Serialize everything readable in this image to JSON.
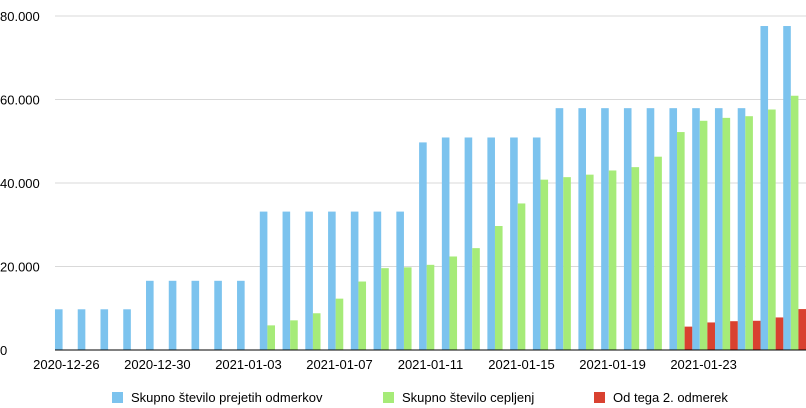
{
  "chart_data": {
    "type": "bar",
    "categories": [
      "2020-12-26",
      "2020-12-27",
      "2020-12-28",
      "2020-12-29",
      "2020-12-30",
      "2020-12-31",
      "2021-01-01",
      "2021-01-02",
      "2021-01-03",
      "2021-01-04",
      "2021-01-05",
      "2021-01-06",
      "2021-01-07",
      "2021-01-08",
      "2021-01-09",
      "2021-01-10",
      "2021-01-11",
      "2021-01-12",
      "2021-01-13",
      "2021-01-14",
      "2021-01-15",
      "2021-01-16",
      "2021-01-17",
      "2021-01-18",
      "2021-01-19",
      "2021-01-20",
      "2021-01-21",
      "2021-01-22",
      "2021-01-23",
      "2021-01-24",
      "2021-01-25",
      "2021-01-26",
      "2021-01-27"
    ],
    "x_tick_labels": [
      "2020-12-26",
      "2020-12-30",
      "2021-01-03",
      "2021-01-07",
      "2021-01-11",
      "2021-01-15",
      "2021-01-19",
      "2021-01-23"
    ],
    "x_tick_indices": [
      0,
      4,
      8,
      12,
      16,
      20,
      24,
      28
    ],
    "y_ticks": [
      0,
      20000,
      40000,
      60000,
      80000
    ],
    "y_tick_labels": [
      "0",
      "20.000",
      "40.000",
      "60.000",
      "80.000"
    ],
    "ylim": [
      0,
      80000
    ],
    "grid": true,
    "legend_position": "bottom",
    "series": [
      {
        "name": "Skupno število prejetih odmerkov",
        "color": "#7cc3ee",
        "values": [
          9750,
          9750,
          9750,
          9750,
          16575,
          16575,
          16575,
          16575,
          16575,
          33150,
          33150,
          33150,
          33150,
          33150,
          33150,
          33150,
          49725,
          50900,
          50900,
          50900,
          50900,
          50900,
          57925,
          57925,
          57925,
          57925,
          57925,
          57925,
          57925,
          57925,
          57925,
          77600,
          77600
        ]
      },
      {
        "name": "Skupno število cepljenj",
        "color": "#a6eb78",
        "values": [
          0,
          0,
          0,
          0,
          0,
          0,
          0,
          0,
          0,
          5900,
          7100,
          8800,
          12300,
          16400,
          19600,
          19800,
          20400,
          22400,
          24400,
          29700,
          35100,
          40800,
          41400,
          42000,
          43000,
          43800,
          46300,
          52200,
          54900,
          55600,
          56000,
          57600,
          60900
        ]
      },
      {
        "name": "Od tega 2. odmerek",
        "color": "#d94130",
        "values": [
          0,
          0,
          0,
          0,
          0,
          0,
          0,
          0,
          0,
          0,
          0,
          0,
          0,
          0,
          0,
          0,
          0,
          0,
          0,
          0,
          0,
          0,
          0,
          0,
          0,
          0,
          0,
          5600,
          6600,
          6900,
          7000,
          7800,
          9800
        ]
      }
    ]
  }
}
